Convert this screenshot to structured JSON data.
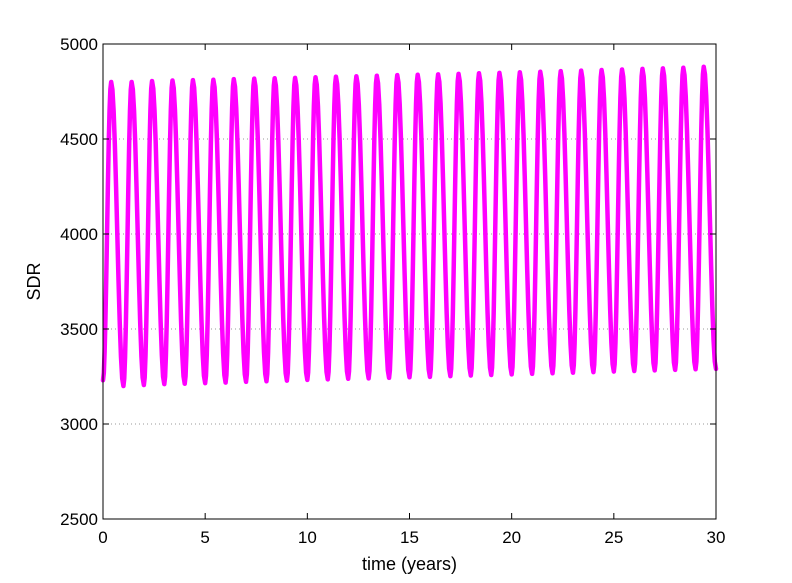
{
  "chart_data": {
    "type": "line",
    "xlabel": "time (years)",
    "ylabel": "SDR",
    "xlim": [
      0,
      30
    ],
    "ylim": [
      2500,
      5000
    ],
    "xticks": [
      0,
      5,
      10,
      15,
      20,
      25,
      30
    ],
    "yticks": [
      2500,
      3000,
      3500,
      4000,
      4500,
      5000
    ],
    "xtick_labels": [
      "0",
      "5",
      "10",
      "15",
      "20",
      "25",
      "30"
    ],
    "ytick_labels": [
      "2500",
      "3000",
      "3500",
      "4000",
      "4500",
      "5000"
    ],
    "grid": "horizontal dotted at y ticks",
    "series": [
      {
        "color": "#ff00ff",
        "style": "thick solid line, seasonal oscillation with period of one year",
        "x": [
          0,
          0.4,
          1,
          1.4,
          2,
          2.4,
          3,
          3.4,
          4,
          4.4,
          5,
          5.4,
          6,
          6.4,
          7,
          7.4,
          8,
          8.4,
          9,
          9.4,
          10,
          10.4,
          11,
          11.4,
          12,
          12.4,
          13,
          13.4,
          14,
          14.4,
          15,
          15.4,
          16,
          16.4,
          17,
          17.4,
          18,
          18.4,
          19,
          19.4,
          20,
          20.4,
          21,
          21.4,
          22,
          22.4,
          23,
          23.4,
          24,
          24.4,
          25,
          25.4,
          26,
          26.4,
          27,
          27.4,
          28,
          28.4,
          29,
          29.4,
          30
        ],
        "y": [
          3230,
          4800,
          3200,
          4800,
          3205,
          4805,
          3210,
          4808,
          3212,
          4810,
          3215,
          4812,
          3218,
          4815,
          3222,
          4818,
          3225,
          4820,
          3228,
          4822,
          3232,
          4825,
          3235,
          4828,
          3238,
          4830,
          3240,
          4833,
          3243,
          4836,
          3246,
          4838,
          3248,
          4840,
          3252,
          4843,
          3255,
          4846,
          3258,
          4848,
          3261,
          4851,
          3264,
          4854,
          3267,
          4857,
          3270,
          4860,
          3273,
          4863,
          3276,
          4866,
          3279,
          4869,
          3282,
          4872,
          3285,
          4875,
          3288,
          4880,
          3290
        ]
      }
    ]
  }
}
